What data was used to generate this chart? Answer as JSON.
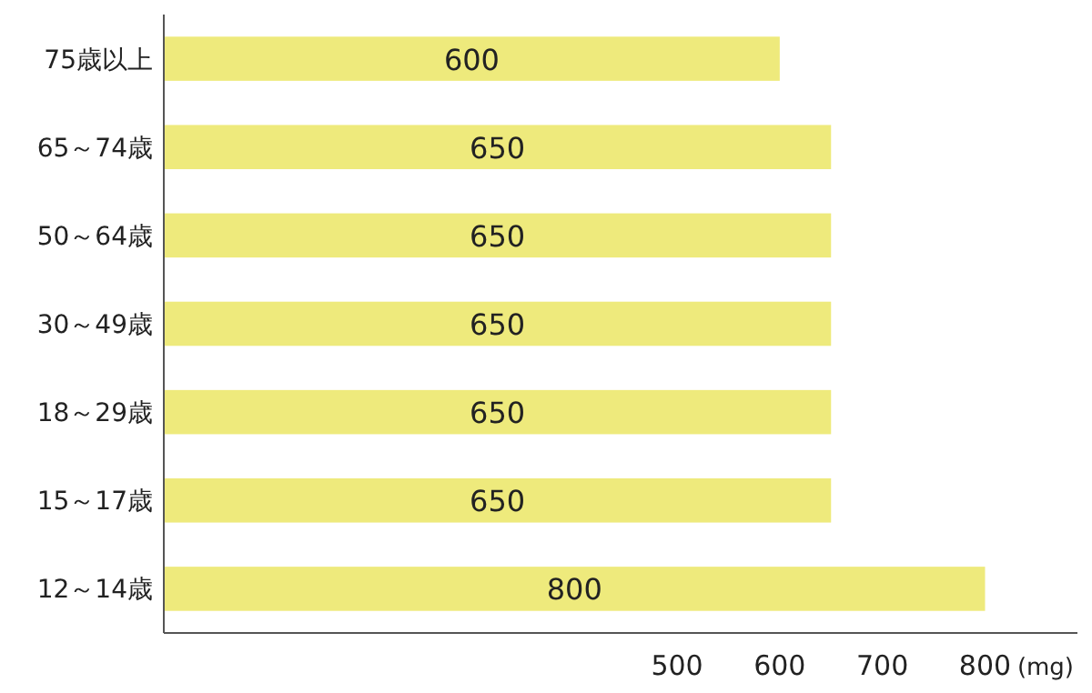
{
  "chart_data": {
    "type": "bar",
    "orientation": "horizontal",
    "categories": [
      "75歳以上",
      "65～74歳",
      "50～64歳",
      "30～49歳",
      "18～29歳",
      "15～17歳",
      "12～14歳"
    ],
    "values": [
      600,
      650,
      650,
      650,
      650,
      650,
      800
    ],
    "color": "#eeea7c",
    "data_labels": true,
    "xlabel": "(mg)",
    "xlim": [
      0,
      890
    ],
    "xticks": [
      500,
      600,
      700,
      800
    ],
    "grid": false
  }
}
